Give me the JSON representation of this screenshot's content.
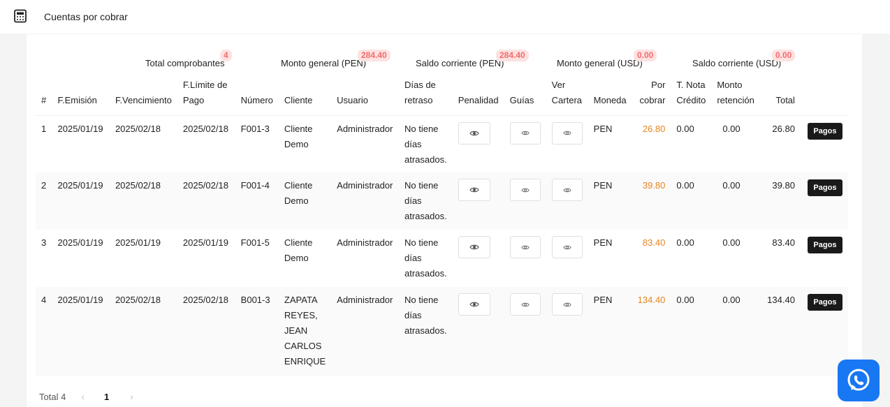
{
  "header": {
    "title": "Cuentas por cobrar",
    "icon": "calculator-icon"
  },
  "summary": [
    {
      "label": "Total comprobantes",
      "badge": "4"
    },
    {
      "label": "Monto general (PEN)",
      "badge": "284.40"
    },
    {
      "label": "Saldo corriente (PEN)",
      "badge": "284.40"
    },
    {
      "label": "Monto general (USD)",
      "badge": "0.00"
    },
    {
      "label": "Saldo corriente (USD)",
      "badge": "0.00"
    }
  ],
  "columns": [
    "#",
    "F.Emisión",
    "F.Vencimiento",
    "F.Límite de Pago",
    "Número",
    "Cliente",
    "Usuario",
    "Días de retraso",
    "Penalidad",
    "Guías",
    "Ver Cartera",
    "Moneda",
    "Por cobrar",
    "T. Nota Crédito",
    "Monto retención",
    "Total",
    ""
  ],
  "rows": [
    {
      "n": "1",
      "emision": "2025/01/19",
      "vencimiento": "2025/02/18",
      "limite": "2025/02/18",
      "numero": "F001-3",
      "cliente": "Cliente Demo",
      "usuario": "Administrador",
      "retraso": "No tiene días atrasados.",
      "moneda": "PEN",
      "por_cobrar": "26.80",
      "nota": "0.00",
      "retencion": "0.00",
      "total": "26.80",
      "action": "Pagos"
    },
    {
      "n": "2",
      "emision": "2025/01/19",
      "vencimiento": "2025/02/18",
      "limite": "2025/02/18",
      "numero": "F001-4",
      "cliente": "Cliente Demo",
      "usuario": "Administrador",
      "retraso": "No tiene días atrasados.",
      "moneda": "PEN",
      "por_cobrar": "39.80",
      "nota": "0.00",
      "retencion": "0.00",
      "total": "39.80",
      "action": "Pagos"
    },
    {
      "n": "3",
      "emision": "2025/01/19",
      "vencimiento": "2025/01/19",
      "limite": "2025/01/19",
      "numero": "F001-5",
      "cliente": "Cliente Demo",
      "usuario": "Administrador",
      "retraso": "No tiene días atrasados.",
      "moneda": "PEN",
      "por_cobrar": "83.40",
      "nota": "0.00",
      "retencion": "0.00",
      "total": "83.40",
      "action": "Pagos"
    },
    {
      "n": "4",
      "emision": "2025/01/19",
      "vencimiento": "2025/02/18",
      "limite": "2025/02/18",
      "numero": "B001-3",
      "cliente": "ZAPATA REYES, JEAN CARLOS ENRIQUE",
      "usuario": "Administrador",
      "retraso": "No tiene días atrasados.",
      "moneda": "PEN",
      "por_cobrar": "134.40",
      "nota": "0.00",
      "retencion": "0.00",
      "total": "134.40",
      "action": "Pagos"
    }
  ],
  "pagination": {
    "total_label": "Total 4",
    "current_page": "1"
  },
  "colors": {
    "accent_orange": "#e6851e",
    "badge_text": "#f56c6c",
    "badge_bg": "#fde2e2",
    "whatsapp": "#1877f2"
  }
}
